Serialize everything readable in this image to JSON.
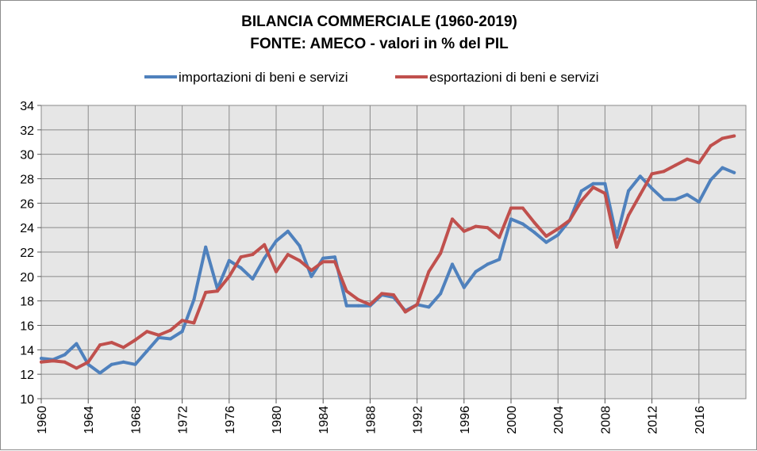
{
  "chart_data": {
    "type": "line",
    "title": "BILANCIA COMMERCIALE (1960-2019)",
    "subtitle": "FONTE: AMECO - valori in % del PIL",
    "xlabel": "",
    "ylabel": "",
    "ylim": [
      10,
      34
    ],
    "yticks": [
      "10",
      "12",
      "14",
      "16",
      "18",
      "20",
      "22",
      "24",
      "26",
      "28",
      "30",
      "32",
      "34"
    ],
    "xticks": [
      "1960",
      "1964",
      "1968",
      "1972",
      "1976",
      "1980",
      "1984",
      "1988",
      "1992",
      "1996",
      "2000",
      "2004",
      "2008",
      "2012",
      "2016"
    ],
    "xlim": [
      1960,
      2019
    ],
    "grid": true,
    "legend_position": "top",
    "colors": {
      "plot_background": "#e6e6e6",
      "grid": "#8a8a8a"
    },
    "x": [
      1960,
      1961,
      1962,
      1963,
      1964,
      1965,
      1966,
      1967,
      1968,
      1969,
      1970,
      1971,
      1972,
      1973,
      1974,
      1975,
      1976,
      1977,
      1978,
      1979,
      1980,
      1981,
      1982,
      1983,
      1984,
      1985,
      1986,
      1987,
      1988,
      1989,
      1990,
      1991,
      1992,
      1993,
      1994,
      1995,
      1996,
      1997,
      1998,
      1999,
      2000,
      2001,
      2002,
      2003,
      2004,
      2005,
      2006,
      2007,
      2008,
      2009,
      2010,
      2011,
      2012,
      2013,
      2014,
      2015,
      2016,
      2017,
      2018,
      2019
    ],
    "series": [
      {
        "name": "importazioni di beni e servizi",
        "color": "#4f81bd",
        "values": [
          13.3,
          13.2,
          13.6,
          14.5,
          12.8,
          12.1,
          12.8,
          13.0,
          12.8,
          13.9,
          15.0,
          14.9,
          15.5,
          18.1,
          22.4,
          19.0,
          21.3,
          20.7,
          19.8,
          21.5,
          22.9,
          23.7,
          22.5,
          20.0,
          21.5,
          21.6,
          17.6,
          17.6,
          17.6,
          18.5,
          18.3,
          17.2,
          17.7,
          17.5,
          18.6,
          21.0,
          19.1,
          20.4,
          21.0,
          21.4,
          24.7,
          24.3,
          23.6,
          22.8,
          23.4,
          24.6,
          27.0,
          27.6,
          27.6,
          23.2,
          27.0,
          28.2,
          27.2,
          26.3,
          26.3,
          26.7,
          26.1,
          27.9,
          28.9,
          28.5
        ]
      },
      {
        "name": "esportazioni di beni e servizi",
        "color": "#c0504d",
        "values": [
          13.0,
          13.1,
          13.0,
          12.5,
          13.0,
          14.4,
          14.6,
          14.2,
          14.8,
          15.5,
          15.2,
          15.6,
          16.4,
          16.2,
          18.7,
          18.8,
          20.0,
          21.6,
          21.8,
          22.6,
          20.4,
          21.8,
          21.3,
          20.5,
          21.2,
          21.2,
          18.8,
          18.1,
          17.7,
          18.6,
          18.5,
          17.1,
          17.7,
          20.4,
          21.9,
          24.7,
          23.7,
          24.1,
          24.0,
          23.2,
          25.6,
          25.6,
          24.4,
          23.3,
          23.9,
          24.6,
          26.2,
          27.3,
          26.8,
          22.4,
          25.0,
          26.7,
          28.4,
          28.6,
          29.1,
          29.6,
          29.3,
          30.7,
          31.3,
          31.5
        ]
      }
    ]
  }
}
